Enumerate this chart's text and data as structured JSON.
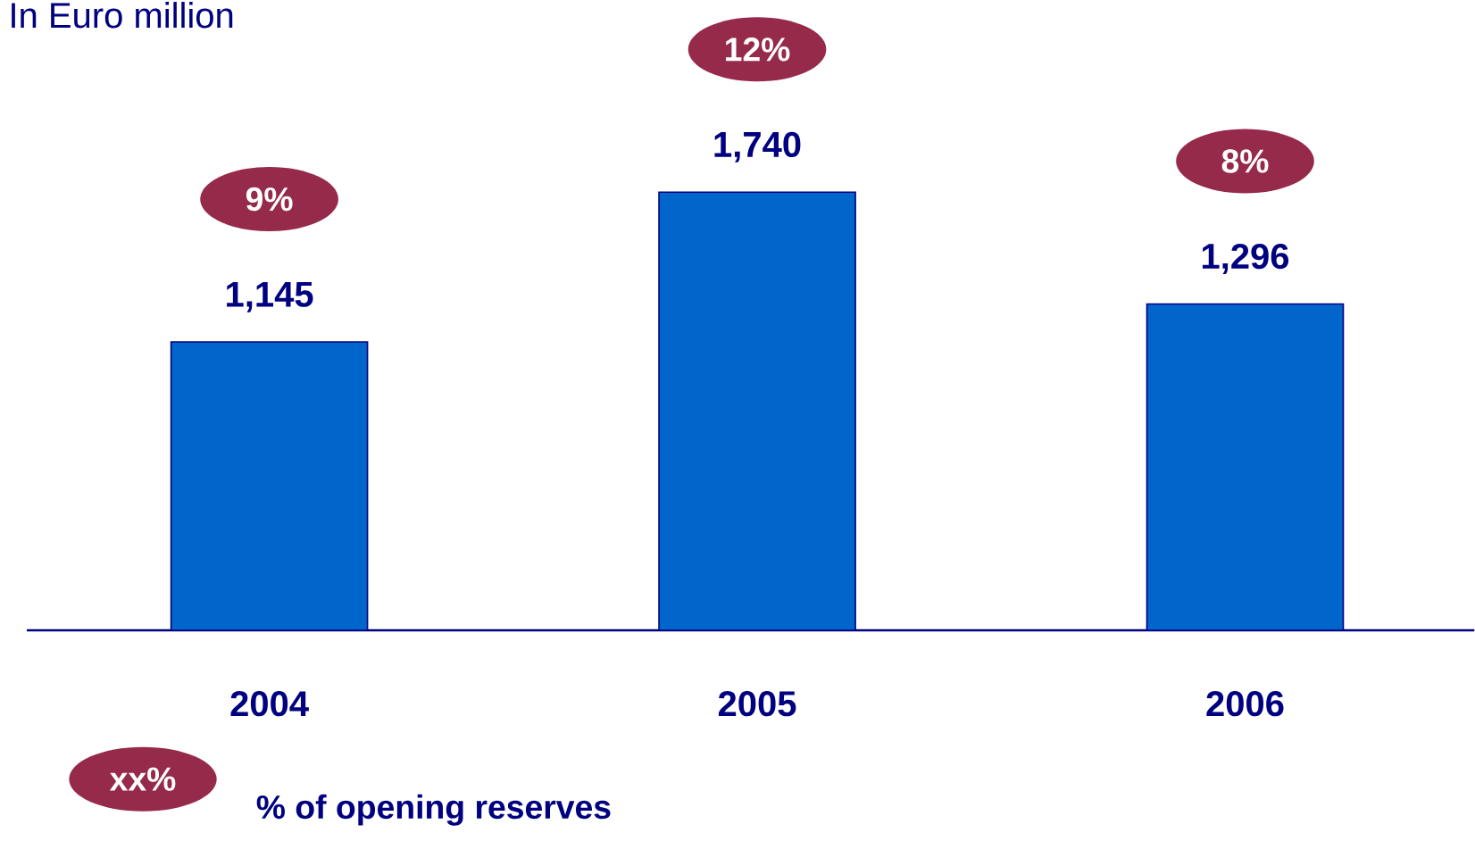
{
  "chart_data": {
    "type": "bar",
    "subtitle": "In Euro million",
    "categories": [
      "2004",
      "2005",
      "2006"
    ],
    "values": [
      1145,
      1740,
      1296
    ],
    "color": "#0066cc",
    "value_labels": [
      "1,145",
      "1,740",
      "1,296"
    ],
    "annotations": [
      "9%",
      "12%",
      "8%",
      "xx%",
      "% of opening reserves"
    ]
  }
}
